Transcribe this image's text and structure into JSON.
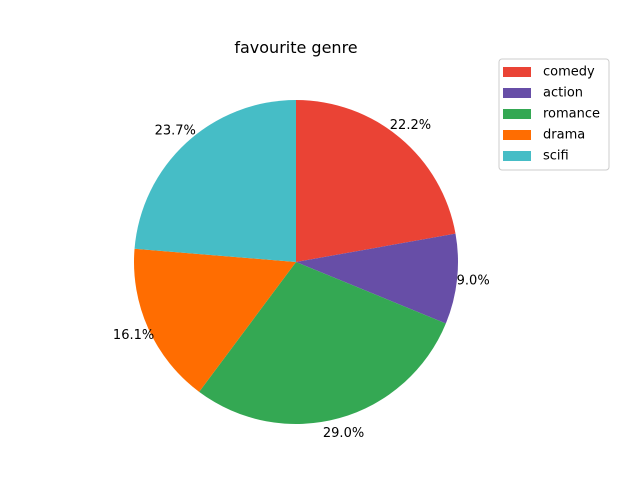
{
  "chart_data": {
    "type": "pie",
    "title": "favourite genre",
    "categories": [
      "comedy",
      "action",
      "romance",
      "drama",
      "scifi"
    ],
    "values": [
      22.2,
      9.0,
      29.0,
      16.1,
      23.7
    ],
    "labels": [
      "22.2%",
      "9.0%",
      "29.0%",
      "16.1%",
      "23.7%"
    ],
    "colors": [
      "#ea4335",
      "#674ea7",
      "#34a853",
      "#ff6d01",
      "#46bdc6"
    ],
    "legend_position": "top-right",
    "start_angle_deg": 90,
    "direction": "clockwise"
  }
}
